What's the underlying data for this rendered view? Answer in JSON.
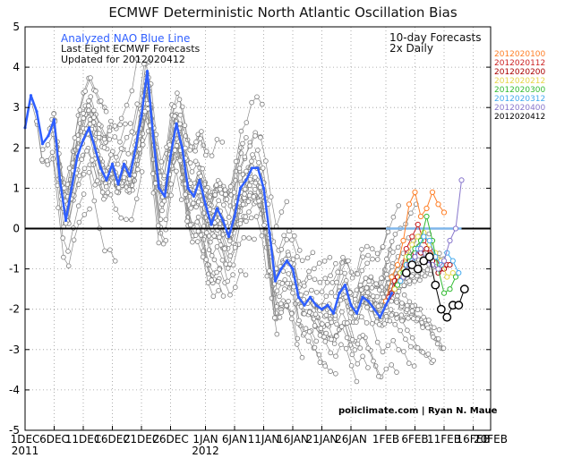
{
  "chart_data": {
    "type": "line",
    "title": "ECMWF Deterministic North Atlantic Oscillation Bias",
    "annotations": {
      "blue_line_label": "Analyzed NAO Blue Line",
      "forecast_label": "Last Eight ECMWF Forecasts",
      "updated_label": "Updated for 2012020412",
      "top_right_line1": "10-day Forecasts",
      "top_right_line2": "2x Daily",
      "credit": "policlimate.com | Ryan N. Maue"
    },
    "ylim": [
      -5,
      5
    ],
    "y_ticks": [
      5,
      4,
      3,
      2,
      1,
      0,
      -1,
      -2,
      -3,
      -4,
      -5
    ],
    "x_range_days": [
      0,
      80
    ],
    "x_ticks": [
      {
        "day": 0,
        "label": "1DEC"
      },
      {
        "day": 5,
        "label": "6DEC"
      },
      {
        "day": 10,
        "label": "11DEC"
      },
      {
        "day": 15,
        "label": "16DEC"
      },
      {
        "day": 20,
        "label": "21DEC"
      },
      {
        "day": 25,
        "label": "26DEC"
      },
      {
        "day": 31,
        "label": "1JAN"
      },
      {
        "day": 36,
        "label": "6JAN"
      },
      {
        "day": 41,
        "label": "11JAN"
      },
      {
        "day": 46,
        "label": "16JAN"
      },
      {
        "day": 51,
        "label": "21JAN"
      },
      {
        "day": 56,
        "label": "26JAN"
      },
      {
        "day": 62,
        "label": "1FEB"
      },
      {
        "day": 67,
        "label": "6FEB"
      },
      {
        "day": 72,
        "label": "11FEB"
      },
      {
        "day": 77,
        "label": "16FEB"
      },
      {
        "day": 80,
        "label": "20FEB"
      }
    ],
    "year_labels": [
      {
        "day": 0,
        "label": "2011"
      },
      {
        "day": 31,
        "label": "2012"
      }
    ],
    "grid": true,
    "zero_line": true,
    "analyzed_nao": {
      "name": "Analyzed NAO Blue Line",
      "color": "#2f5fff",
      "points": [
        [
          0,
          2.5
        ],
        [
          1,
          3.3
        ],
        [
          2,
          2.9
        ],
        [
          3,
          2.1
        ],
        [
          4,
          2.3
        ],
        [
          5,
          2.7
        ],
        [
          6,
          1.2
        ],
        [
          7,
          0.2
        ],
        [
          8,
          1.0
        ],
        [
          9,
          1.8
        ],
        [
          10,
          2.2
        ],
        [
          11,
          2.5
        ],
        [
          12,
          2.0
        ],
        [
          13,
          1.5
        ],
        [
          14,
          1.2
        ],
        [
          15,
          1.6
        ],
        [
          16,
          1.1
        ],
        [
          17,
          1.6
        ],
        [
          18,
          1.3
        ],
        [
          19,
          2.0
        ],
        [
          20,
          2.8
        ],
        [
          21,
          3.9
        ],
        [
          22,
          2.3
        ],
        [
          23,
          1.0
        ],
        [
          24,
          0.8
        ],
        [
          25,
          1.8
        ],
        [
          26,
          2.6
        ],
        [
          27,
          2.0
        ],
        [
          28,
          1.0
        ],
        [
          29,
          0.8
        ],
        [
          30,
          1.2
        ],
        [
          31,
          0.6
        ],
        [
          32,
          0.1
        ],
        [
          33,
          0.5
        ],
        [
          34,
          0.2
        ],
        [
          35,
          -0.2
        ],
        [
          36,
          0.3
        ],
        [
          37,
          1.0
        ],
        [
          38,
          1.2
        ],
        [
          39,
          1.5
        ],
        [
          40,
          1.5
        ],
        [
          41,
          1.0
        ],
        [
          42,
          -0.1
        ],
        [
          43,
          -1.3
        ],
        [
          44,
          -1.0
        ],
        [
          45,
          -0.8
        ],
        [
          46,
          -1.0
        ],
        [
          47,
          -1.7
        ],
        [
          48,
          -1.9
        ],
        [
          49,
          -1.7
        ],
        [
          50,
          -1.9
        ],
        [
          51,
          -2.0
        ],
        [
          52,
          -1.9
        ],
        [
          53,
          -2.1
        ],
        [
          54,
          -1.6
        ],
        [
          55,
          -1.4
        ],
        [
          56,
          -1.9
        ],
        [
          57,
          -2.1
        ],
        [
          58,
          -1.7
        ],
        [
          59,
          -1.8
        ],
        [
          60,
          -2.0
        ],
        [
          61,
          -2.2
        ],
        [
          62,
          -1.9
        ],
        [
          63,
          -1.6
        ]
      ]
    },
    "legend": [
      {
        "label": "2012020100",
        "color": "#ff7f27"
      },
      {
        "label": "2012020112",
        "color": "#cc2222"
      },
      {
        "label": "2012020200",
        "color": "#aa0000"
      },
      {
        "label": "2012020212",
        "color": "#e6d64a"
      },
      {
        "label": "2012020300",
        "color": "#33bb33"
      },
      {
        "label": "2012020312",
        "color": "#44aaee"
      },
      {
        "label": "2012020400",
        "color": "#8877cc"
      },
      {
        "label": "2012020412",
        "color": "#000000"
      }
    ],
    "forecasts": [
      {
        "name": "2012020100",
        "color": "#ff7f27",
        "points": [
          [
            62,
            -1.8
          ],
          [
            63,
            -1.2
          ],
          [
            64,
            -0.9
          ],
          [
            65,
            -0.3
          ],
          [
            66,
            0.6
          ],
          [
            67,
            0.9
          ],
          [
            68,
            0.3
          ],
          [
            69,
            0.5
          ],
          [
            70,
            0.9
          ],
          [
            71,
            0.6
          ],
          [
            72,
            0.4
          ]
        ]
      },
      {
        "name": "2012020112",
        "color": "#cc2222",
        "points": [
          [
            62.5,
            -1.7
          ],
          [
            63.5,
            -1.3
          ],
          [
            64.5,
            -1.1
          ],
          [
            65.5,
            -0.5
          ],
          [
            66.5,
            -0.2
          ],
          [
            67.5,
            0.1
          ],
          [
            68.5,
            -0.3
          ],
          [
            69.5,
            -0.5
          ],
          [
            70.5,
            -0.7
          ],
          [
            71.5,
            -1.0
          ],
          [
            72.5,
            -0.9
          ]
        ]
      },
      {
        "name": "2012020200",
        "color": "#aa0000",
        "points": [
          [
            63,
            -1.6
          ],
          [
            64,
            -1.2
          ],
          [
            65,
            -1.0
          ],
          [
            66,
            -0.8
          ],
          [
            67,
            -0.6
          ],
          [
            68,
            -0.6
          ],
          [
            69,
            -0.5
          ],
          [
            70,
            -0.8
          ],
          [
            71,
            -1.1
          ],
          [
            72,
            -1.0
          ],
          [
            73,
            -0.9
          ]
        ]
      },
      {
        "name": "2012020212",
        "color": "#e6d64a",
        "points": [
          [
            63.5,
            -1.5
          ],
          [
            64.5,
            -1.1
          ],
          [
            65.5,
            -0.7
          ],
          [
            66.5,
            -0.4
          ],
          [
            67.5,
            -0.2
          ],
          [
            68.5,
            -0.1
          ],
          [
            69.5,
            -0.4
          ],
          [
            70.5,
            -0.6
          ],
          [
            71.5,
            -0.8
          ],
          [
            72.5,
            -1.2
          ],
          [
            73.5,
            -1.1
          ]
        ]
      },
      {
        "name": "2012020300",
        "color": "#33bb33",
        "points": [
          [
            64,
            -1.4
          ],
          [
            65,
            -1.1
          ],
          [
            66,
            -0.7
          ],
          [
            67,
            -0.5
          ],
          [
            68,
            -0.3
          ],
          [
            69,
            0.3
          ],
          [
            70,
            -0.3
          ],
          [
            71,
            -1.0
          ],
          [
            72,
            -1.6
          ],
          [
            73,
            -1.5
          ],
          [
            74,
            -1.2
          ]
        ]
      },
      {
        "name": "2012020312",
        "color": "#44aaee",
        "points": [
          [
            64.5,
            -1.3
          ],
          [
            65.5,
            -0.9
          ],
          [
            66.5,
            -0.8
          ],
          [
            67.5,
            -0.5
          ],
          [
            68.5,
            -0.2
          ],
          [
            69.5,
            -0.3
          ],
          [
            70.5,
            -0.7
          ],
          [
            71.5,
            -0.9
          ],
          [
            72.5,
            -0.6
          ],
          [
            73.5,
            -0.8
          ],
          [
            74.5,
            -1.1
          ]
        ]
      },
      {
        "name": "2012020400",
        "color": "#8877cc",
        "points": [
          [
            65,
            -1.2
          ],
          [
            66,
            -0.9
          ],
          [
            67,
            -0.7
          ],
          [
            68,
            -0.5
          ],
          [
            69,
            -0.8
          ],
          [
            70,
            -0.9
          ],
          [
            71,
            -1.0
          ],
          [
            72,
            -0.8
          ],
          [
            73,
            -0.3
          ],
          [
            74,
            0.0
          ],
          [
            75,
            1.2
          ]
        ]
      },
      {
        "name": "2012020412",
        "color": "#000000",
        "points": [
          [
            65.5,
            -1.1
          ],
          [
            66.5,
            -0.9
          ],
          [
            67.5,
            -1.0
          ],
          [
            68.5,
            -0.8
          ],
          [
            69.5,
            -0.7
          ],
          [
            70.5,
            -1.4
          ],
          [
            71.5,
            -2.0
          ],
          [
            72.5,
            -2.2
          ],
          [
            73.5,
            -1.9
          ],
          [
            74.5,
            -1.9
          ],
          [
            75.5,
            -1.5
          ]
        ]
      }
    ],
    "forecast_mean_line": {
      "color": "#7fb6ea",
      "points": [
        [
          62,
          0
        ],
        [
          75,
          0
        ]
      ]
    }
  }
}
